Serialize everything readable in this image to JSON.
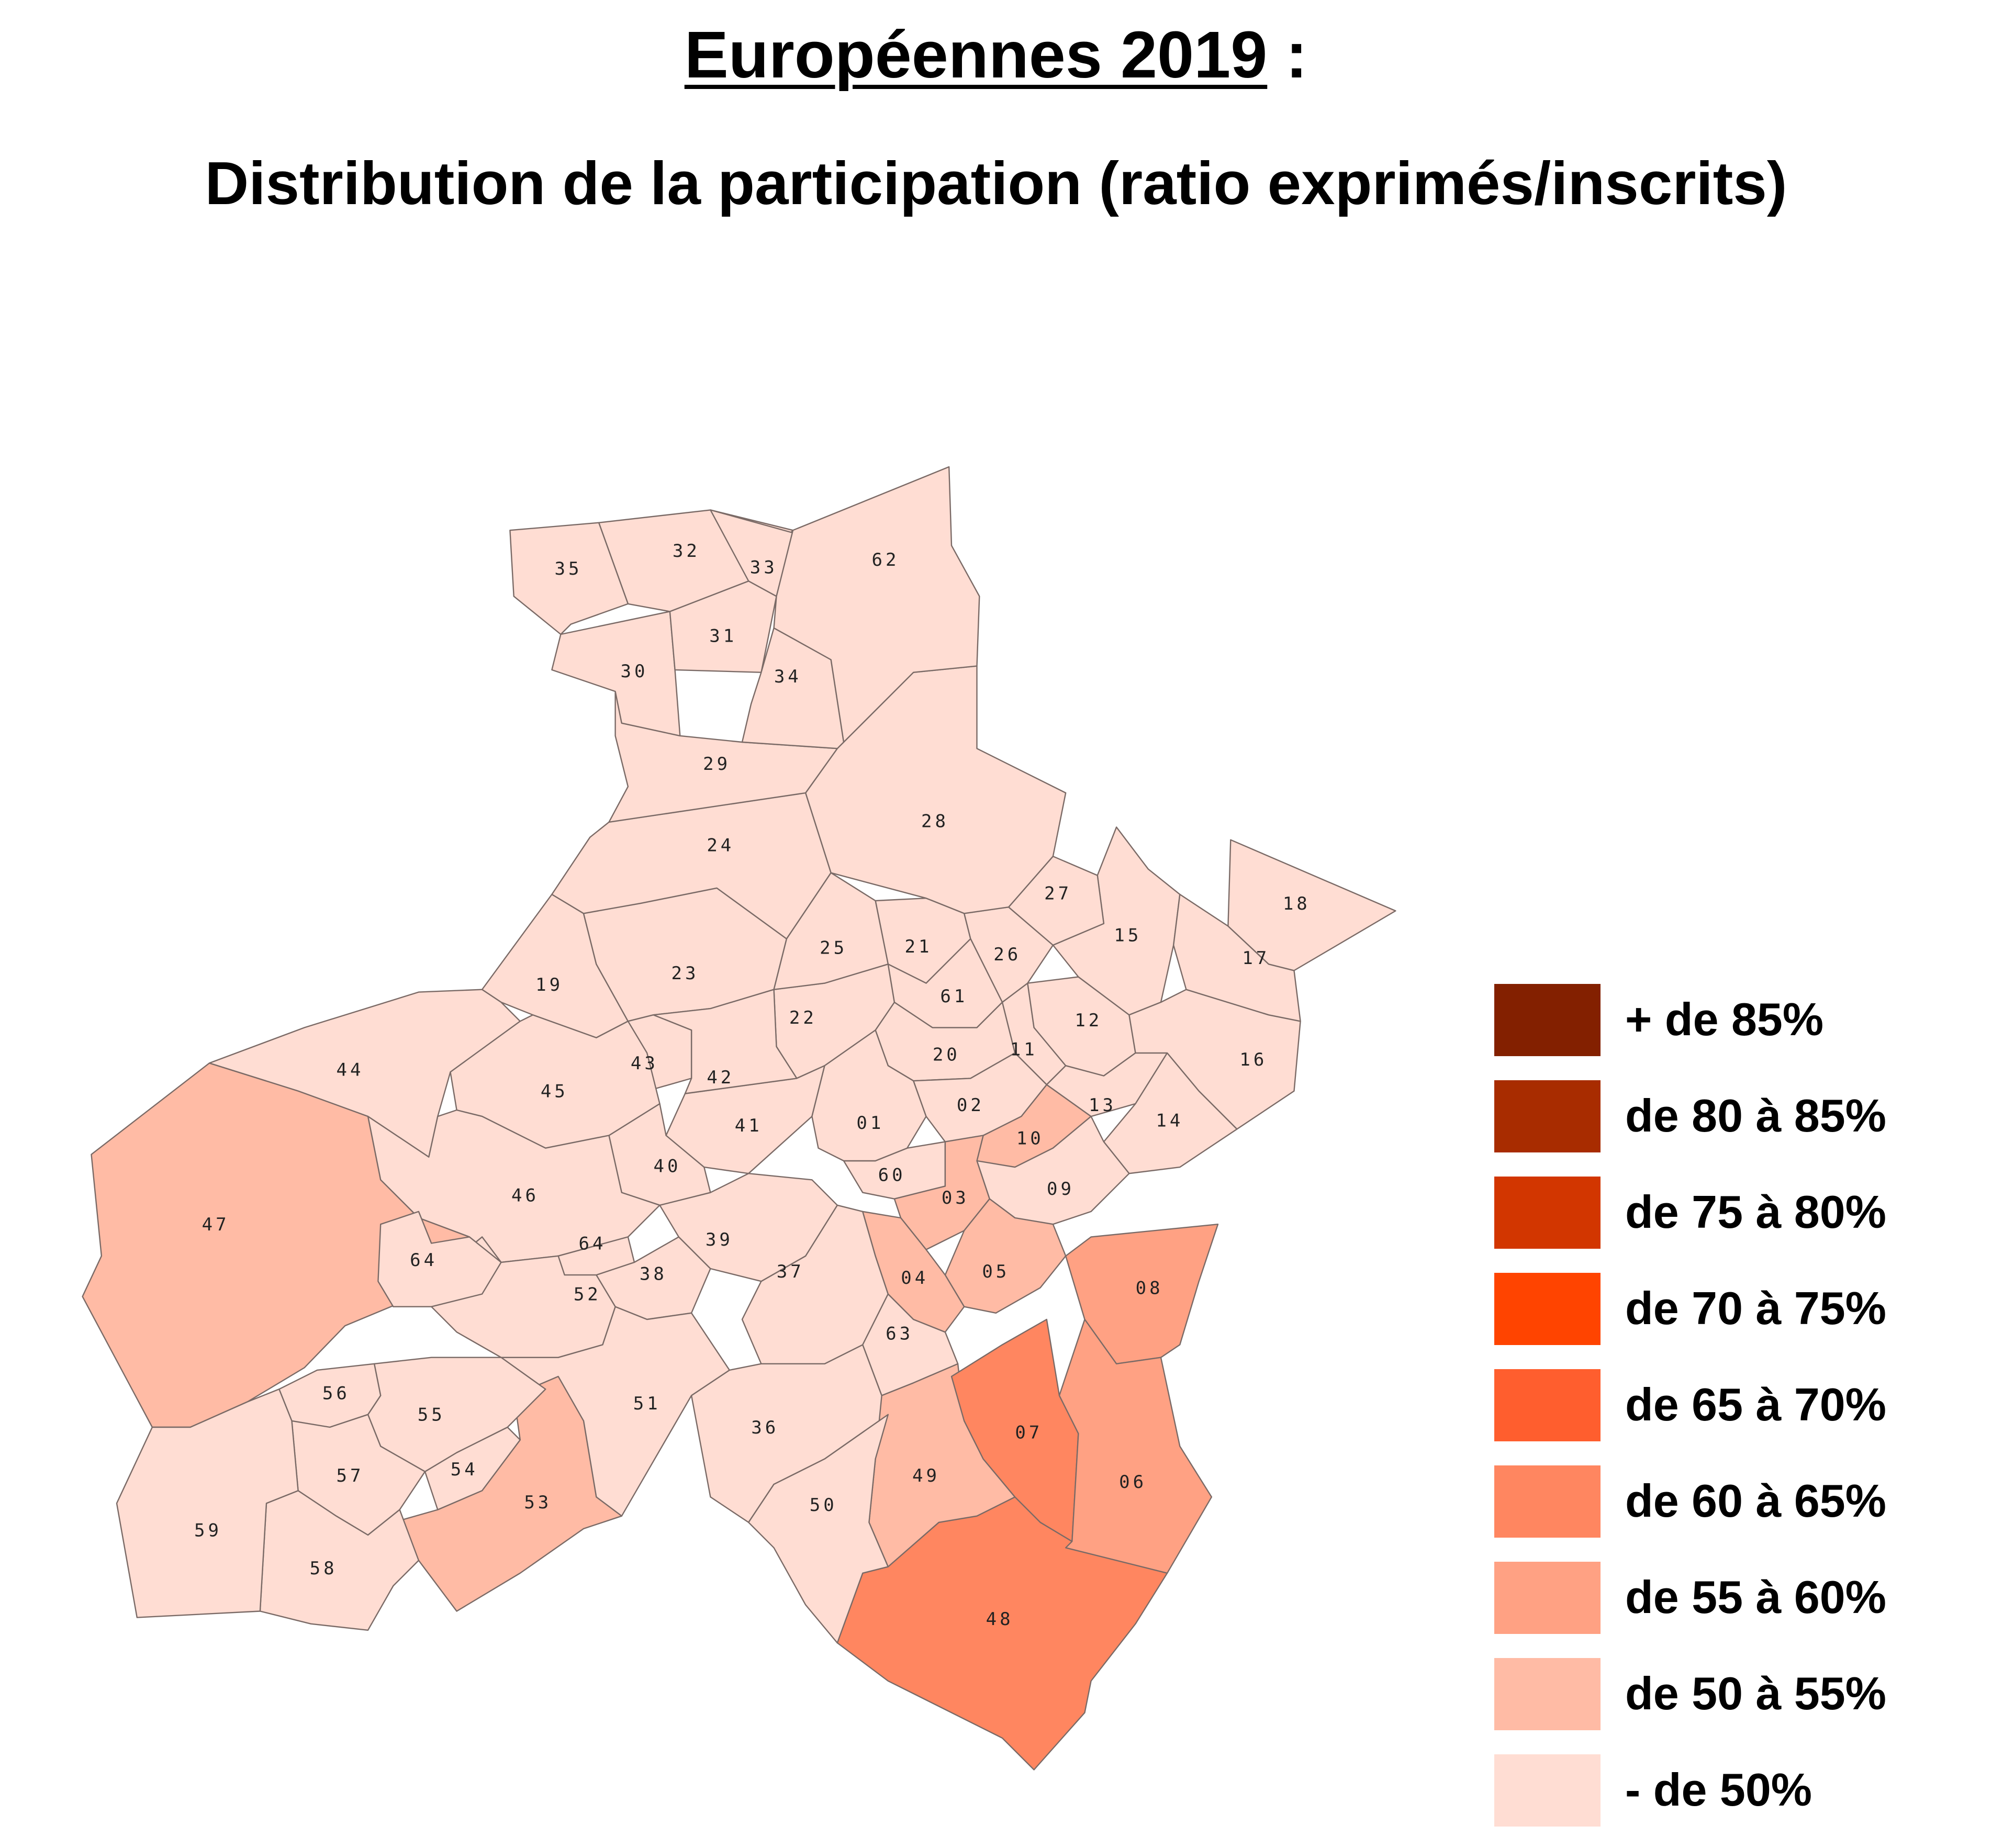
{
  "title": {
    "main": "Européennes 2019",
    "suffix": " :",
    "subtitle": "Distribution de la participation (ratio exprimés/inscrits)"
  },
  "legend": [
    {
      "label": "+ de 85%",
      "color": "#832000"
    },
    {
      "label": "de 80 à 85%",
      "color": "#a82c00"
    },
    {
      "label": "de 75 à 80%",
      "color": "#d23600"
    },
    {
      "label": "de 70 à 75%",
      "color": "#ff4400"
    },
    {
      "label": "de 65 à 70%",
      "color": "#ff5e2e"
    },
    {
      "label": "de 60 à 65%",
      "color": "#ff8660"
    },
    {
      "label": "de 55 à 60%",
      "color": "#ffa183"
    },
    {
      "label": "de 50 à 55%",
      "color": "#ffbba5"
    },
    {
      "label": "- de 50%",
      "color": "#ffddd3"
    }
  ],
  "regions": [
    {
      "id": "01",
      "category": "- de 50%"
    },
    {
      "id": "02",
      "category": "- de 50%"
    },
    {
      "id": "03",
      "category": "de 50 à 55%"
    },
    {
      "id": "04",
      "category": "de 50 à 55%"
    },
    {
      "id": "05",
      "category": "de 50 à 55%"
    },
    {
      "id": "06",
      "category": "de 55 à 60%"
    },
    {
      "id": "07",
      "category": "de 60 à 65%"
    },
    {
      "id": "08",
      "category": "de 55 à 60%"
    },
    {
      "id": "09",
      "category": "- de 50%"
    },
    {
      "id": "10",
      "category": "de 50 à 55%"
    },
    {
      "id": "11",
      "category": "- de 50%"
    },
    {
      "id": "12",
      "category": "- de 50%"
    },
    {
      "id": "13",
      "category": "- de 50%"
    },
    {
      "id": "14",
      "category": "- de 50%"
    },
    {
      "id": "15",
      "category": "- de 50%"
    },
    {
      "id": "16",
      "category": "- de 50%"
    },
    {
      "id": "17",
      "category": "- de 50%"
    },
    {
      "id": "18",
      "category": "- de 50%"
    },
    {
      "id": "19",
      "category": "- de 50%"
    },
    {
      "id": "20",
      "category": "- de 50%"
    },
    {
      "id": "21",
      "category": "- de 50%"
    },
    {
      "id": "22",
      "category": "- de 50%"
    },
    {
      "id": "23",
      "category": "- de 50%"
    },
    {
      "id": "24",
      "category": "- de 50%"
    },
    {
      "id": "25",
      "category": "- de 50%"
    },
    {
      "id": "26",
      "category": "- de 50%"
    },
    {
      "id": "27",
      "category": "- de 50%"
    },
    {
      "id": "28",
      "category": "- de 50%"
    },
    {
      "id": "29",
      "category": "- de 50%"
    },
    {
      "id": "30",
      "category": "- de 50%"
    },
    {
      "id": "31",
      "category": "- de 50%"
    },
    {
      "id": "32",
      "category": "- de 50%"
    },
    {
      "id": "33",
      "category": "- de 50%"
    },
    {
      "id": "34",
      "category": "- de 50%"
    },
    {
      "id": "35",
      "category": "- de 50%"
    },
    {
      "id": "36",
      "category": "- de 50%"
    },
    {
      "id": "37",
      "category": "- de 50%"
    },
    {
      "id": "38",
      "category": "- de 50%"
    },
    {
      "id": "39",
      "category": "- de 50%"
    },
    {
      "id": "40",
      "category": "- de 50%"
    },
    {
      "id": "41",
      "category": "- de 50%"
    },
    {
      "id": "42",
      "category": "- de 50%"
    },
    {
      "id": "43",
      "category": "- de 50%"
    },
    {
      "id": "44",
      "category": "- de 50%"
    },
    {
      "id": "45",
      "category": "- de 50%"
    },
    {
      "id": "46",
      "category": "- de 50%"
    },
    {
      "id": "47",
      "category": "de 50 à 55%"
    },
    {
      "id": "48",
      "category": "de 60 à 65%"
    },
    {
      "id": "49",
      "category": "de 50 à 55%"
    },
    {
      "id": "50",
      "category": "- de 50%"
    },
    {
      "id": "51",
      "category": "- de 50%"
    },
    {
      "id": "52",
      "category": "- de 50%"
    },
    {
      "id": "53",
      "category": "de 50 à 55%"
    },
    {
      "id": "54",
      "category": "- de 50%"
    },
    {
      "id": "55",
      "category": "- de 50%"
    },
    {
      "id": "56",
      "category": "- de 50%"
    },
    {
      "id": "57",
      "category": "- de 50%"
    },
    {
      "id": "58",
      "category": "- de 50%"
    },
    {
      "id": "59",
      "category": "- de 50%"
    },
    {
      "id": "60",
      "category": "- de 50%"
    },
    {
      "id": "61",
      "category": "- de 50%"
    },
    {
      "id": "62",
      "category": "- de 50%"
    },
    {
      "id": "63",
      "category": "- de 50%"
    },
    {
      "id": "64",
      "category": "- de 50%"
    }
  ]
}
